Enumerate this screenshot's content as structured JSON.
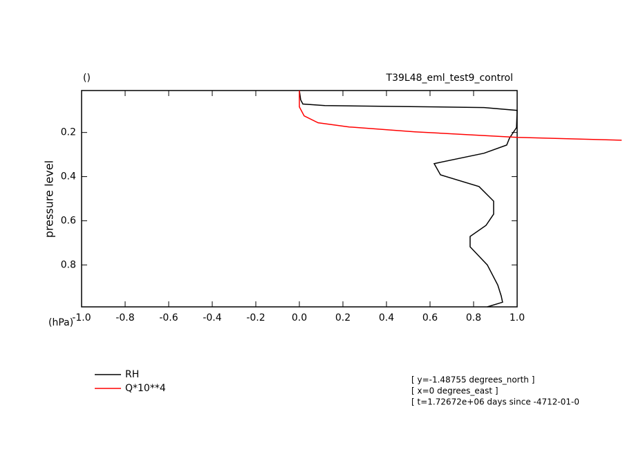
{
  "chart_data": {
    "type": "line",
    "subtitle": "()",
    "title": "T39L48_eml_test9_control",
    "ylabel": "pressure level",
    "yunit": "(hPa)",
    "xlim": [
      -1,
      1
    ],
    "ylim": [
      0.01,
      0.99
    ],
    "y_inverted": true,
    "xticks": [
      {
        "value": -1,
        "label": "-1.0"
      },
      {
        "value": -0.8,
        "label": "-0.8"
      },
      {
        "value": -0.6,
        "label": "-0.6"
      },
      {
        "value": -0.4,
        "label": "-0.4"
      },
      {
        "value": -0.2,
        "label": "-0.2"
      },
      {
        "value": 0,
        "label": "0.0"
      },
      {
        "value": 0.2,
        "label": "0.2"
      },
      {
        "value": 0.4,
        "label": "0.4"
      },
      {
        "value": 0.6,
        "label": "0.6"
      },
      {
        "value": 0.8,
        "label": "0.8"
      },
      {
        "value": 1,
        "label": "1.0"
      }
    ],
    "yticks": [
      0.2,
      0.4,
      0.6,
      0.8
    ],
    "series": [
      {
        "name": "RH",
        "color": "#000000",
        "x": [
          0.863,
          0.933,
          0.927,
          0.911,
          0.863,
          0.784,
          0.784,
          0.857,
          0.892,
          0.892,
          0.825,
          0.648,
          0.619,
          0.848,
          0.952,
          0.965,
          0.997,
          1.0,
          0.848,
          0.117,
          0.016,
          0.006,
          0.0
        ],
        "y": [
          0.99,
          0.969,
          0.941,
          0.891,
          0.8,
          0.718,
          0.671,
          0.621,
          0.57,
          0.511,
          0.445,
          0.392,
          0.341,
          0.294,
          0.257,
          0.225,
          0.178,
          0.1,
          0.087,
          0.078,
          0.071,
          0.052,
          0.01
        ]
      },
      {
        "name": "Q*10**4",
        "color": "#ff0000",
        "x": [
          0.0,
          0.0,
          0.022,
          0.086,
          0.229,
          0.53,
          1.0,
          1.48
        ],
        "y": [
          0.01,
          0.084,
          0.125,
          0.156,
          0.175,
          0.197,
          0.222,
          0.235
        ]
      }
    ],
    "annotations": [
      "[ y=-1.48755 degrees_north ]",
      "[ x=0 degrees_east ]",
      "[ t=1.72672e+06 days since -4712-01-0"
    ]
  }
}
